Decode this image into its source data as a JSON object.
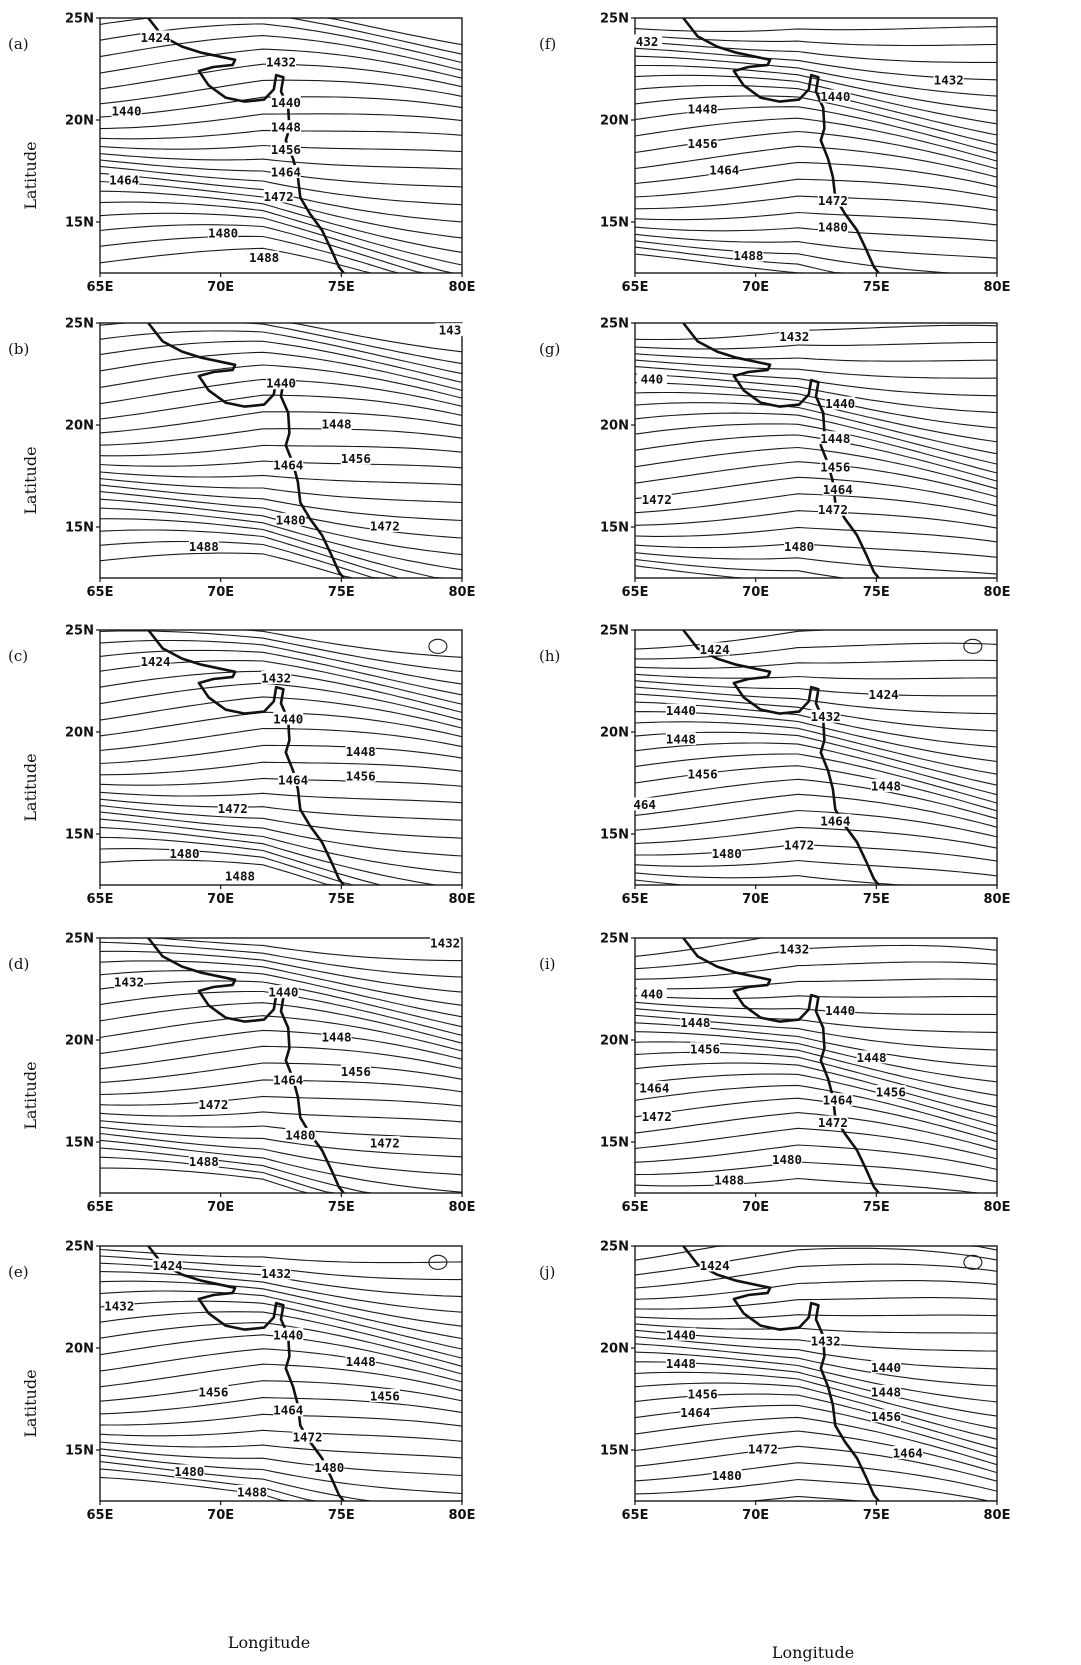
{
  "axis": {
    "x_label": "Longitude",
    "y_label": "Latitude",
    "x_ticks": [
      "65E",
      "70E",
      "75E",
      "80E"
    ],
    "y_ticks": [
      "25N",
      "20N",
      "15N"
    ],
    "lon_range": [
      65,
      80
    ],
    "lat_range": [
      12.5,
      25
    ]
  },
  "panels": [
    {
      "id": "a",
      "label": "(a)",
      "contour_labels": [
        {
          "text": "1424",
          "lon": 67.3,
          "lat": 24.0
        },
        {
          "text": "1432",
          "lon": 72.5,
          "lat": 22.8
        },
        {
          "text": "1440",
          "lon": 66.1,
          "lat": 20.4
        },
        {
          "text": "1440",
          "lon": 72.7,
          "lat": 20.8
        },
        {
          "text": "1448",
          "lon": 72.7,
          "lat": 19.6
        },
        {
          "text": "1456",
          "lon": 72.7,
          "lat": 18.5
        },
        {
          "text": "1464",
          "lon": 66.0,
          "lat": 17.0
        },
        {
          "text": "1464",
          "lon": 72.7,
          "lat": 17.4
        },
        {
          "text": "1472",
          "lon": 72.4,
          "lat": 16.2
        },
        {
          "text": "1480",
          "lon": 70.1,
          "lat": 14.4
        },
        {
          "text": "1488",
          "lon": 71.8,
          "lat": 13.2
        }
      ]
    },
    {
      "id": "b",
      "label": "(b)",
      "contour_labels": [
        {
          "text": "143",
          "lon": 79.5,
          "lat": 24.6
        },
        {
          "text": "1440",
          "lon": 72.5,
          "lat": 22.0
        },
        {
          "text": "1448",
          "lon": 74.8,
          "lat": 20.0
        },
        {
          "text": "1456",
          "lon": 75.6,
          "lat": 18.3
        },
        {
          "text": "1464",
          "lon": 72.8,
          "lat": 18.0
        },
        {
          "text": "1480",
          "lon": 72.9,
          "lat": 15.3
        },
        {
          "text": "1472",
          "lon": 76.8,
          "lat": 15.0
        },
        {
          "text": "1488",
          "lon": 69.3,
          "lat": 14.0
        }
      ]
    },
    {
      "id": "c",
      "label": "(c)",
      "contour_labels": [
        {
          "text": "1424",
          "lon": 67.3,
          "lat": 23.4
        },
        {
          "text": "1432",
          "lon": 72.3,
          "lat": 22.6
        },
        {
          "text": "1440",
          "lon": 72.8,
          "lat": 20.6
        },
        {
          "text": "1448",
          "lon": 75.8,
          "lat": 19.0
        },
        {
          "text": "1456",
          "lon": 75.8,
          "lat": 17.8
        },
        {
          "text": "1464",
          "lon": 73.0,
          "lat": 17.6
        },
        {
          "text": "1472",
          "lon": 70.5,
          "lat": 16.2
        },
        {
          "text": "1480",
          "lon": 68.5,
          "lat": 14.0
        },
        {
          "text": "1488",
          "lon": 70.8,
          "lat": 12.9
        }
      ]
    },
    {
      "id": "d",
      "label": "(d)",
      "contour_labels": [
        {
          "text": "1432",
          "lon": 79.3,
          "lat": 24.7
        },
        {
          "text": "1432",
          "lon": 66.2,
          "lat": 22.8
        },
        {
          "text": "1440",
          "lon": 72.6,
          "lat": 22.3
        },
        {
          "text": "1448",
          "lon": 74.8,
          "lat": 20.1
        },
        {
          "text": "1456",
          "lon": 75.6,
          "lat": 18.4
        },
        {
          "text": "1464",
          "lon": 72.8,
          "lat": 18.0
        },
        {
          "text": "1472",
          "lon": 69.7,
          "lat": 16.8
        },
        {
          "text": "1480",
          "lon": 73.3,
          "lat": 15.3
        },
        {
          "text": "1472",
          "lon": 76.8,
          "lat": 14.9
        },
        {
          "text": "1488",
          "lon": 69.3,
          "lat": 14.0
        }
      ]
    },
    {
      "id": "e",
      "label": "(e)",
      "contour_labels": [
        {
          "text": "1424",
          "lon": 67.8,
          "lat": 24.0
        },
        {
          "text": "1432",
          "lon": 72.3,
          "lat": 23.6
        },
        {
          "text": "1432",
          "lon": 65.8,
          "lat": 22.0
        },
        {
          "text": "1440",
          "lon": 72.8,
          "lat": 20.6
        },
        {
          "text": "1448",
          "lon": 75.8,
          "lat": 19.3
        },
        {
          "text": "1456",
          "lon": 69.7,
          "lat": 17.8
        },
        {
          "text": "1456",
          "lon": 76.8,
          "lat": 17.6
        },
        {
          "text": "1464",
          "lon": 72.8,
          "lat": 16.9
        },
        {
          "text": "1472",
          "lon": 73.6,
          "lat": 15.6
        },
        {
          "text": "1480",
          "lon": 68.7,
          "lat": 13.9
        },
        {
          "text": "1480",
          "lon": 74.5,
          "lat": 14.1
        },
        {
          "text": "1488",
          "lon": 71.3,
          "lat": 12.9
        }
      ]
    },
    {
      "id": "f",
      "label": "(f)",
      "contour_labels": [
        {
          "text": "432",
          "lon": 65.5,
          "lat": 23.8
        },
        {
          "text": "1432",
          "lon": 78.0,
          "lat": 21.9
        },
        {
          "text": "1440",
          "lon": 73.3,
          "lat": 21.1
        },
        {
          "text": "1448",
          "lon": 67.8,
          "lat": 20.5
        },
        {
          "text": "1456",
          "lon": 67.8,
          "lat": 18.8
        },
        {
          "text": "1464",
          "lon": 68.7,
          "lat": 17.5
        },
        {
          "text": "1472",
          "lon": 73.2,
          "lat": 16.0
        },
        {
          "text": "1480",
          "lon": 73.2,
          "lat": 14.7
        },
        {
          "text": "1488",
          "lon": 69.7,
          "lat": 13.3
        }
      ]
    },
    {
      "id": "g",
      "label": "(g)",
      "contour_labels": [
        {
          "text": "1432",
          "lon": 71.6,
          "lat": 24.3
        },
        {
          "text": "440",
          "lon": 65.7,
          "lat": 22.2
        },
        {
          "text": "1440",
          "lon": 73.5,
          "lat": 21.0
        },
        {
          "text": "1448",
          "lon": 73.3,
          "lat": 19.3
        },
        {
          "text": "1456",
          "lon": 73.3,
          "lat": 17.9
        },
        {
          "text": "1464",
          "lon": 73.4,
          "lat": 16.8
        },
        {
          "text": "1472",
          "lon": 65.9,
          "lat": 16.3
        },
        {
          "text": "1472",
          "lon": 73.2,
          "lat": 15.8
        },
        {
          "text": "1480",
          "lon": 71.8,
          "lat": 14.0
        }
      ]
    },
    {
      "id": "h",
      "label": "(h)",
      "contour_labels": [
        {
          "text": "1424",
          "lon": 68.3,
          "lat": 24.0
        },
        {
          "text": "1424",
          "lon": 75.3,
          "lat": 21.8
        },
        {
          "text": "1440",
          "lon": 66.9,
          "lat": 21.0
        },
        {
          "text": "1432",
          "lon": 72.9,
          "lat": 20.7
        },
        {
          "text": "1448",
          "lon": 66.9,
          "lat": 19.6
        },
        {
          "text": "1456",
          "lon": 67.8,
          "lat": 17.9
        },
        {
          "text": "1448",
          "lon": 75.4,
          "lat": 17.3
        },
        {
          "text": "464",
          "lon": 65.4,
          "lat": 16.4
        },
        {
          "text": "1464",
          "lon": 73.3,
          "lat": 15.6
        },
        {
          "text": "1472",
          "lon": 71.8,
          "lat": 14.4
        },
        {
          "text": "1480",
          "lon": 68.8,
          "lat": 14.0
        }
      ]
    },
    {
      "id": "i",
      "label": "(i)",
      "contour_labels": [
        {
          "text": "1432",
          "lon": 71.6,
          "lat": 24.4
        },
        {
          "text": "440",
          "lon": 65.7,
          "lat": 22.2
        },
        {
          "text": "1440",
          "lon": 73.5,
          "lat": 21.4
        },
        {
          "text": "1448",
          "lon": 67.5,
          "lat": 20.8
        },
        {
          "text": "1456",
          "lon": 67.9,
          "lat": 19.5
        },
        {
          "text": "1448",
          "lon": 74.8,
          "lat": 19.1
        },
        {
          "text": "1464",
          "lon": 65.8,
          "lat": 17.6
        },
        {
          "text": "1456",
          "lon": 75.6,
          "lat": 17.4
        },
        {
          "text": "1464",
          "lon": 73.4,
          "lat": 17.0
        },
        {
          "text": "1472",
          "lon": 65.9,
          "lat": 16.2
        },
        {
          "text": "1472",
          "lon": 73.2,
          "lat": 15.9
        },
        {
          "text": "1480",
          "lon": 71.3,
          "lat": 14.1
        },
        {
          "text": "1488",
          "lon": 68.9,
          "lat": 13.1
        }
      ]
    },
    {
      "id": "j",
      "label": "(j)",
      "contour_labels": [
        {
          "text": "1424",
          "lon": 68.3,
          "lat": 24.0
        },
        {
          "text": "1440",
          "lon": 66.9,
          "lat": 20.6
        },
        {
          "text": "1432",
          "lon": 72.9,
          "lat": 20.3
        },
        {
          "text": "1448",
          "lon": 66.9,
          "lat": 19.2
        },
        {
          "text": "1440",
          "lon": 75.4,
          "lat": 19.0
        },
        {
          "text": "1456",
          "lon": 67.8,
          "lat": 17.7
        },
        {
          "text": "1448",
          "lon": 75.4,
          "lat": 17.8
        },
        {
          "text": "1464",
          "lon": 67.5,
          "lat": 16.8
        },
        {
          "text": "1456",
          "lon": 75.4,
          "lat": 16.6
        },
        {
          "text": "1472",
          "lon": 70.3,
          "lat": 15.0
        },
        {
          "text": "1464",
          "lon": 76.3,
          "lat": 14.8
        },
        {
          "text": "1480",
          "lon": 68.8,
          "lat": 13.7
        }
      ]
    }
  ]
}
